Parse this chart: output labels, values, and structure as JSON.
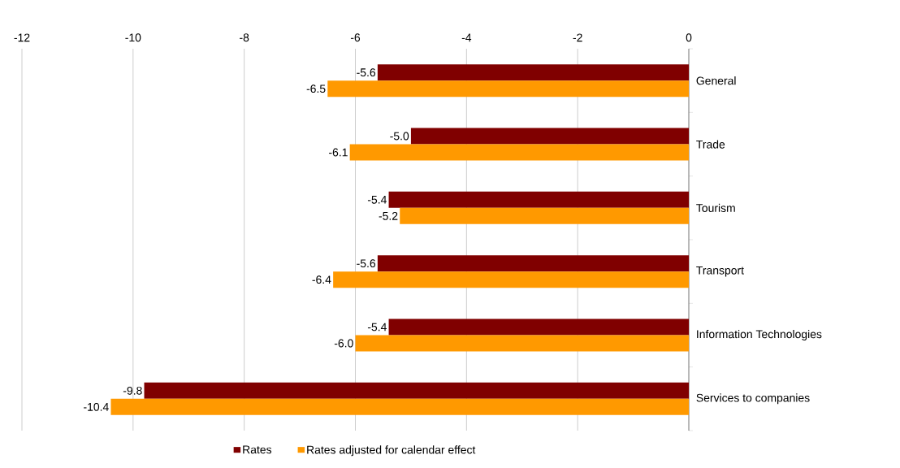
{
  "chart_data": {
    "type": "bar",
    "orientation": "horizontal",
    "categories": [
      "General",
      "Trade",
      "Tourism",
      "Transport",
      "Information Technologies",
      "Services to companies"
    ],
    "series": [
      {
        "name": "Rates",
        "color": "#800000",
        "values": [
          -5.6,
          -5.0,
          -5.4,
          -5.6,
          -5.4,
          -9.8
        ],
        "value_labels": [
          "-5.6",
          "-5.0",
          "-5.4",
          "-5.6",
          "-5.4",
          "-9.8"
        ]
      },
      {
        "name": "Rates adjusted for calendar effect",
        "color": "#ff9900",
        "values": [
          -6.5,
          -6.1,
          -5.2,
          -6.4,
          -6.0,
          -10.4
        ],
        "value_labels": [
          "-6.5",
          "-6.1",
          "-5.2",
          "-6.4",
          "-6.0",
          "-10.4"
        ]
      }
    ],
    "xlim": [
      -12,
      0
    ],
    "xticks": [
      -12,
      -10,
      -8,
      -6,
      -4,
      -2,
      0
    ],
    "grid": "x",
    "legend": "bottom"
  }
}
